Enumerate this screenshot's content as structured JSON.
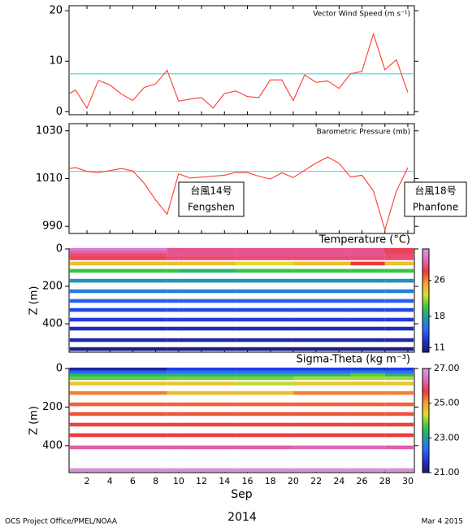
{
  "chart_data": [
    {
      "type": "line",
      "title": "Vector Wind Speed (m s⁻¹)",
      "color": "#ff3b2f",
      "mean": 7.5,
      "mean_color": "#3fe0e8",
      "x": [
        0.5,
        1,
        2,
        3,
        4,
        5,
        6,
        7,
        8,
        9,
        10,
        11,
        12,
        13,
        14,
        15,
        16,
        17,
        18,
        19,
        20,
        21,
        22,
        23,
        24,
        25,
        26,
        27,
        28,
        29,
        30
      ],
      "values": [
        3.6,
        4.3,
        0.7,
        6.2,
        5.3,
        3.5,
        2.2,
        4.8,
        5.5,
        8.2,
        2.1,
        2.5,
        2.8,
        0.7,
        3.6,
        4.1,
        3.0,
        2.8,
        6.3,
        6.3,
        2.2,
        7.3,
        5.8,
        6.1,
        4.6,
        7.5,
        8.0,
        15.4,
        8.3,
        10.3,
        3.8
      ],
      "xlim": [
        0.44,
        30.57
      ],
      "ylim": [
        -0.6,
        21
      ],
      "yticks": [
        0,
        10,
        20
      ]
    },
    {
      "type": "line",
      "title": "Barometric Pressure (mb)",
      "color": "#ff3b2f",
      "mean": 1013,
      "mean_color": "#3fe0e8",
      "x": [
        0.5,
        1,
        2,
        3,
        4,
        5,
        6,
        7,
        8,
        9,
        10,
        11,
        12,
        13,
        14,
        15,
        16,
        17,
        18,
        19,
        20,
        21,
        22,
        23,
        24,
        25,
        26,
        27,
        28,
        29,
        30
      ],
      "values": [
        1014.2,
        1014.6,
        1013,
        1012.6,
        1013.3,
        1014.2,
        1013.2,
        1008,
        1001,
        995,
        1012,
        1010.2,
        1010.6,
        1011,
        1011.4,
        1012.6,
        1012.5,
        1011,
        1009.8,
        1012.4,
        1010.4,
        1013.5,
        1016.5,
        1019,
        1016.4,
        1010.6,
        1011.4,
        1004.8,
        988.5,
        1004.8,
        1014.6
      ],
      "xlim": [
        0.44,
        30.57
      ],
      "ylim": [
        987,
        1033
      ],
      "yticks": [
        990,
        1010,
        1030
      ],
      "annotations": [
        [
          "台風14号",
          "Fengshen"
        ],
        [
          "台風18号",
          "Phanfone"
        ]
      ]
    },
    {
      "type": "heatmap",
      "title": "Temperature (°C)",
      "ylabel": "Z (m)",
      "xlim": [
        0.44,
        30.57
      ],
      "ylim": [
        0,
        552
      ],
      "yticks": [
        0,
        200,
        400
      ],
      "x_edges": [
        0.5,
        9,
        10,
        15,
        20,
        25,
        28,
        30.5
      ],
      "clim": [
        10,
        33
      ],
      "cticks": [
        11,
        18,
        26
      ],
      "rows": [
        {
          "depth": 5,
          "values": [
            31.5,
            29.5,
            29.5,
            29.5,
            29.5,
            29.5,
            28.5
          ]
        },
        {
          "depth": 20,
          "values": [
            30,
            29.5,
            29.5,
            29.5,
            29.5,
            29.5,
            28.5
          ]
        },
        {
          "depth": 35,
          "values": [
            29,
            29.5,
            29.5,
            29.5,
            29.5,
            29.5,
            29
          ]
        },
        {
          "depth": 50,
          "values": [
            28.5,
            29,
            29,
            29,
            29,
            29,
            29
          ]
        },
        {
          "depth": 78,
          "values": [
            24,
            24,
            24,
            23,
            24,
            28,
            24
          ]
        },
        {
          "depth": 117,
          "values": [
            20,
            20,
            19,
            20,
            20,
            20,
            20
          ]
        },
        {
          "depth": 170,
          "values": [
            17,
            17,
            17,
            17,
            17,
            17,
            17
          ]
        },
        {
          "depth": 226,
          "values": [
            16,
            16,
            16,
            16,
            16,
            16,
            16
          ]
        },
        {
          "depth": 278,
          "values": [
            14.5,
            14.5,
            14.5,
            14.5,
            14.5,
            14.5,
            14.5
          ]
        },
        {
          "depth": 326,
          "values": [
            13.5,
            13.5,
            13.5,
            13.5,
            13.5,
            13.5,
            13.5
          ]
        },
        {
          "depth": 378,
          "values": [
            13,
            13,
            13,
            13,
            13,
            13,
            13
          ]
        },
        {
          "depth": 426,
          "values": [
            12,
            12,
            12,
            12,
            12,
            12,
            12
          ]
        },
        {
          "depth": 487,
          "values": [
            11.5,
            11.5,
            11.5,
            11.5,
            11.5,
            11.5,
            11.5
          ]
        },
        {
          "depth": 535,
          "values": [
            10.5,
            10.5,
            10.5,
            10.5,
            10.5,
            10.5,
            10.5
          ]
        }
      ]
    },
    {
      "type": "heatmap",
      "title": "Sigma-Theta (kg m⁻³)",
      "ylabel": "Z (m)",
      "xlabel": "Sep",
      "xlim": [
        0.44,
        30.57
      ],
      "ylim": [
        0,
        540
      ],
      "yticks": [
        0,
        200,
        400
      ],
      "xticks": [
        2,
        4,
        6,
        8,
        10,
        12,
        14,
        16,
        18,
        20,
        22,
        24,
        26,
        28,
        30
      ],
      "x_edges": [
        0.5,
        9,
        10,
        15,
        20,
        25,
        28,
        30.5
      ],
      "clim": [
        21,
        27
      ],
      "cticks": [
        {
          "value": 21,
          "label": "21.00"
        },
        {
          "value": 23,
          "label": "23.00"
        },
        {
          "value": 25,
          "label": "25.00"
        },
        {
          "value": 27,
          "label": "27.00"
        }
      ],
      "rows": [
        {
          "depth": 5,
          "values": [
            21.3,
            21.8,
            21.8,
            21.8,
            21.8,
            21.8,
            21.8
          ]
        },
        {
          "depth": 20,
          "values": [
            22.2,
            22.4,
            22.4,
            22.4,
            22.4,
            22.6,
            22.4
          ]
        },
        {
          "depth": 35,
          "values": [
            23.3,
            23.3,
            23.3,
            23.3,
            23.3,
            23.8,
            23.3
          ]
        },
        {
          "depth": 50,
          "values": [
            23.8,
            23.9,
            23.9,
            23.9,
            24.1,
            24.1,
            24.1
          ]
        },
        {
          "depth": 78,
          "values": [
            24.6,
            24.6,
            24.6,
            24.2,
            24.6,
            24.6,
            24.6
          ]
        },
        {
          "depth": 127,
          "values": [
            25.2,
            24.7,
            24.7,
            24.7,
            25.2,
            25.2,
            25.2
          ]
        },
        {
          "depth": 186,
          "values": [
            25.4,
            25.4,
            25.4,
            25.4,
            25.4,
            25.4,
            25.4
          ]
        },
        {
          "depth": 236,
          "values": [
            25.5,
            25.5,
            25.5,
            25.5,
            25.5,
            25.5,
            25.5
          ]
        },
        {
          "depth": 291,
          "values": [
            25.6,
            25.6,
            25.6,
            25.6,
            25.6,
            25.6,
            25.6
          ]
        },
        {
          "depth": 346,
          "values": [
            25.7,
            25.7,
            25.7,
            25.7,
            25.7,
            25.7,
            25.7
          ]
        },
        {
          "depth": 409,
          "values": [
            26.2,
            26.2,
            26.2,
            26.2,
            26.3,
            26.3,
            26.2
          ]
        },
        {
          "depth": 527,
          "values": [
            26.8,
            26.8,
            26.8,
            26.8,
            26.8,
            26.8,
            26.8
          ]
        }
      ]
    }
  ],
  "footer": {
    "left": "OCS Project Office/PMEL/NOAA",
    "center": "2014",
    "right": "Mar  4 2015"
  }
}
